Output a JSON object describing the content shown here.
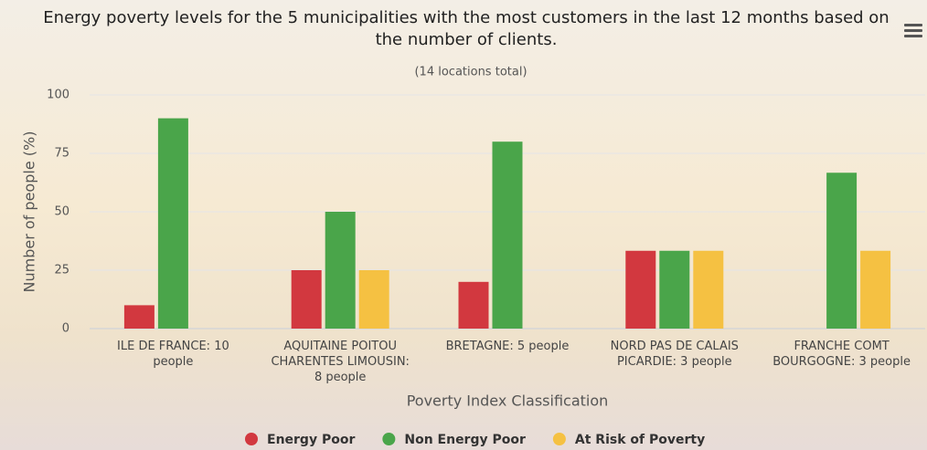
{
  "chart_data": {
    "type": "bar",
    "title": "Energy poverty levels for the 5 municipalities with the most customers in the last 12 months based on the number of clients.",
    "subtitle": "(14 locations total)",
    "y_label": "Number of people (%)",
    "x_label": "Poverty Index Classification",
    "categories": [
      "ILE DE FRANCE: 10 people",
      "AQUITAINE POITOU CHARENTES LIMOUSIN: 8 people",
      "BRETAGNE: 5 people",
      "NORD PAS DE CALAIS PICARDIE: 3 people",
      "FRANCHE COMT BOURGOGNE: 3 people"
    ],
    "series": [
      {
        "name": "Energy Poor",
        "color": "#d2383f",
        "values": [
          10,
          25,
          20,
          33.3,
          0
        ]
      },
      {
        "name": "Non Energy Poor",
        "color": "#4aa54a",
        "values": [
          90,
          50,
          80,
          33.3,
          66.7
        ]
      },
      {
        "name": "At Risk of Poverty",
        "color": "#f5c142",
        "values": [
          0,
          25,
          0,
          33.3,
          33.3
        ]
      }
    ],
    "ylim": [
      0,
      100
    ],
    "yticks": [
      0,
      25,
      50,
      75,
      100
    ],
    "grid": true
  }
}
